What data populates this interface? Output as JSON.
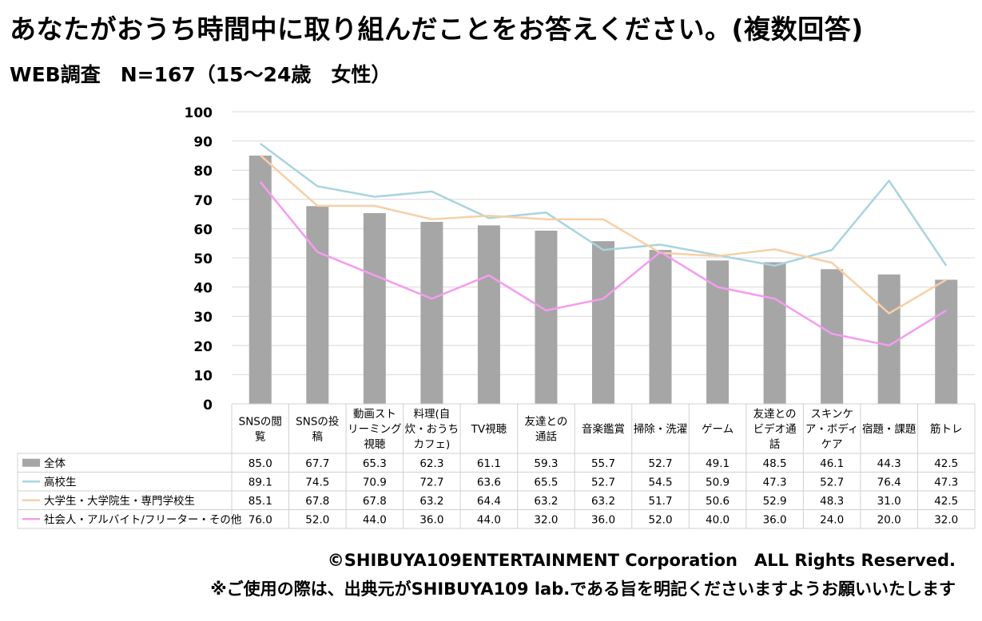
{
  "title": "あなたがおうち時間中に取り組んだことをお答えください。(複数回答)",
  "subtitle": "WEB調査　N=167（15～24歳　女性）",
  "footer_copyright": "©SHIBUYA109ENTERTAINMENT Corporation　ALL Rights Reserved.",
  "footer_note": "※ご使用の際は、出典元がSHIBUYA109 lab.である旨を明記くださいますようお願いいたします",
  "colors": {
    "bar": "#a6a6a6",
    "highschool": "#a8d4e0",
    "university": "#f7cfa6",
    "worker": "#f59cf0",
    "grid": "#d9d9d9"
  },
  "chart_data": {
    "type": "bar",
    "ylim": [
      0,
      100
    ],
    "yticks": [
      0,
      10,
      20,
      30,
      40,
      50,
      60,
      70,
      80,
      90,
      100
    ],
    "categories": [
      [
        "SNSの閲",
        "覧"
      ],
      [
        "SNSの投",
        "稿"
      ],
      [
        "動画スト",
        "リーミング",
        "視聴"
      ],
      [
        "料理(自",
        "炊・おうち",
        "カフェ)"
      ],
      [
        "TV視聴"
      ],
      [
        "友達との",
        "通話"
      ],
      [
        "音楽鑑賞"
      ],
      [
        "掃除・洗濯"
      ],
      [
        "ゲーム"
      ],
      [
        "友達との",
        "ビデオ通",
        "話"
      ],
      [
        "スキンケ",
        "ア・ボディ",
        "ケア"
      ],
      [
        "宿題・課題"
      ],
      [
        "筋トレ"
      ]
    ],
    "series": [
      {
        "name": "全体",
        "type": "bar",
        "values": [
          85.0,
          67.7,
          65.3,
          62.3,
          61.1,
          59.3,
          55.7,
          52.7,
          49.1,
          48.5,
          46.1,
          44.3,
          42.5
        ]
      },
      {
        "name": "高校生",
        "type": "line",
        "values": [
          89.1,
          74.5,
          70.9,
          72.7,
          63.6,
          65.5,
          52.7,
          54.5,
          50.9,
          47.3,
          52.7,
          76.4,
          47.3
        ]
      },
      {
        "name": "大学生・大学院生・専門学校生",
        "type": "line",
        "values": [
          85.1,
          67.8,
          67.8,
          63.2,
          64.4,
          63.2,
          63.2,
          51.7,
          50.6,
          52.9,
          48.3,
          31.0,
          42.5
        ]
      },
      {
        "name": "社会人・アルバイト/フリーター・その他",
        "type": "line",
        "values": [
          76.0,
          52.0,
          44.0,
          36.0,
          44.0,
          32.0,
          36.0,
          52.0,
          40.0,
          36.0,
          24.0,
          20.0,
          32.0
        ]
      }
    ],
    "table": [
      [
        "85.0",
        "67.7",
        "65.3",
        "62.3",
        "61.1",
        "59.3",
        "55.7",
        "52.7",
        "49.1",
        "48.5",
        "46.1",
        "44.3",
        "42.5"
      ],
      [
        "89.1",
        "74.5",
        "70.9",
        "72.7",
        "63.6",
        "65.5",
        "52.7",
        "54.5",
        "50.9",
        "47.3",
        "52.7",
        "76.4",
        "47.3"
      ],
      [
        "85.1",
        "67.8",
        "67.8",
        "63.2",
        "64.4",
        "63.2",
        "63.2",
        "51.7",
        "50.6",
        "52.9",
        "48.3",
        "31.0",
        "42.5"
      ],
      [
        "76.0",
        "52.0",
        "44.0",
        "36.0",
        "44.0",
        "32.0",
        "36.0",
        "52.0",
        "40.0",
        "36.0",
        "24.0",
        "20.0",
        "32.0"
      ]
    ]
  }
}
